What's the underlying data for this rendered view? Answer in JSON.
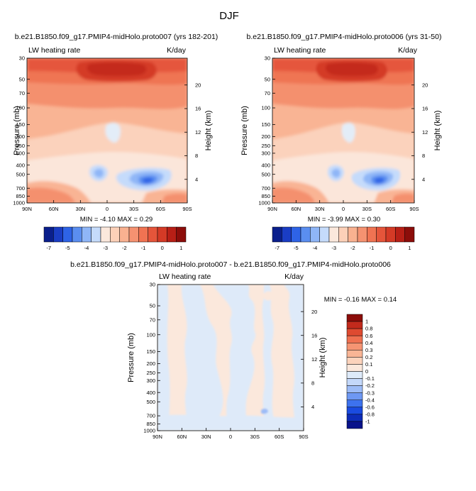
{
  "page_title": "DJF",
  "colors": {
    "main_scale": [
      "#0a1f8c",
      "#1a3dc4",
      "#2e63e6",
      "#5a8ef0",
      "#8fb6f7",
      "#c5dbfb",
      "#fbe8dc",
      "#fcd0b8",
      "#f9b190",
      "#f59271",
      "#f07352",
      "#e5553a",
      "#d43a26",
      "#b81f16",
      "#8c0d0a"
    ],
    "diff_scale": [
      "#08128a",
      "#0d2cb8",
      "#1a4be0",
      "#3d72ee",
      "#6e98f3",
      "#9dbcf7",
      "#c4d8fa",
      "#deeaf9",
      "#fbe8dc",
      "#fcd3bc",
      "#f9b595",
      "#f59473",
      "#ef7050",
      "#de4a30",
      "#c22a1c",
      "#8c0d0a"
    ]
  },
  "chart_data": [
    {
      "type": "heatmap",
      "title": "b.e21.B1850.f09_g17.PMIP4-midHolo.proto007 (yrs 182-201)",
      "left_label": "LW heating rate",
      "units_label": "K/day",
      "ylabel": "Pressure (mb)",
      "right_ylabel": "Height (km)",
      "x_ticks": [
        "90N",
        "60N",
        "30N",
        "0",
        "30S",
        "60S",
        "90S"
      ],
      "y_ticks": [
        "30",
        "50",
        "70",
        "100",
        "150",
        "200",
        "250",
        "300",
        "400",
        "500",
        "700",
        "850",
        "1000"
      ],
      "height_ticks": [
        "20",
        "16",
        "12",
        "8",
        "4"
      ],
      "stats": "MIN =  -4.10   MAX =   0.29",
      "colorbar_labels": [
        "-7",
        "-5",
        "-4",
        "-3",
        "-2",
        "-1",
        "0",
        "1"
      ]
    },
    {
      "type": "heatmap",
      "title": "b.e21.B1850.f09_g17.PMIP4-midHolo.proto006 (yrs 31-50)",
      "left_label": "LW heating rate",
      "units_label": "K/day",
      "ylabel": "Pressure (mb)",
      "right_ylabel": "Height (km)",
      "x_ticks": [
        "90N",
        "60N",
        "30N",
        "0",
        "30S",
        "60S",
        "90S"
      ],
      "y_ticks": [
        "30",
        "50",
        "70",
        "100",
        "150",
        "200",
        "250",
        "300",
        "400",
        "500",
        "700",
        "850",
        "1000"
      ],
      "height_ticks": [
        "20",
        "16",
        "12",
        "8",
        "4"
      ],
      "stats": "MIN =  -3.99   MAX =   0.30",
      "colorbar_labels": [
        "-7",
        "-5",
        "-4",
        "-3",
        "-2",
        "-1",
        "0",
        "1"
      ]
    },
    {
      "type": "heatmap",
      "title": "b.e21.B1850.f09_g17.PMIP4-midHolo.proto007 - b.e21.B1850.f09_g17.PMIP4-midHolo.proto006",
      "left_label": "LW heating rate",
      "units_label": "K/day",
      "ylabel": "Pressure (mb)",
      "right_ylabel": "Height (km)",
      "x_ticks": [
        "90N",
        "60N",
        "30N",
        "0",
        "30S",
        "60S",
        "90S"
      ],
      "y_ticks": [
        "30",
        "50",
        "70",
        "100",
        "150",
        "200",
        "250",
        "300",
        "400",
        "500",
        "700",
        "850",
        "1000"
      ],
      "height_ticks": [
        "20",
        "16",
        "12",
        "8",
        "4"
      ],
      "stats": "MIN =  -0.16   MAX =   0.14",
      "colorbar_labels": [
        "1",
        "0.8",
        "0.6",
        "0.4",
        "0.3",
        "0.2",
        "0.1",
        "0",
        "-0.1",
        "-0.2",
        "-0.3",
        "-0.4",
        "-0.6",
        "-0.8",
        "-1"
      ]
    }
  ]
}
